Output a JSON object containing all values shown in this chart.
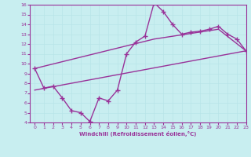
{
  "xlabel": "Windchill (Refroidissement éolien,°C)",
  "bg_color": "#c8eef0",
  "line_color": "#993399",
  "grid_color": "#b8e4e8",
  "xlim": [
    -0.5,
    23
  ],
  "ylim": [
    4,
    16
  ],
  "xticks": [
    0,
    1,
    2,
    3,
    4,
    5,
    6,
    7,
    8,
    9,
    10,
    11,
    12,
    13,
    14,
    15,
    16,
    17,
    18,
    19,
    20,
    21,
    22,
    23
  ],
  "yticks": [
    4,
    5,
    6,
    7,
    8,
    9,
    10,
    11,
    12,
    13,
    14,
    15,
    16
  ],
  "line1_x": [
    0,
    1,
    2,
    3,
    4,
    5,
    6,
    7,
    8,
    9,
    10,
    11,
    12,
    13,
    14,
    15,
    16,
    17,
    18,
    19,
    20,
    21,
    22,
    23
  ],
  "line1_y": [
    9.5,
    7.5,
    7.7,
    6.5,
    5.2,
    5.0,
    4.1,
    6.5,
    6.2,
    7.3,
    11.0,
    12.2,
    12.8,
    16.2,
    15.3,
    14.0,
    13.0,
    13.2,
    13.3,
    13.5,
    13.8,
    13.0,
    12.5,
    11.3
  ],
  "line2_x": [
    0,
    23
  ],
  "line2_y": [
    7.3,
    11.3
  ],
  "line3_x": [
    0,
    13,
    20,
    23
  ],
  "line3_y": [
    9.5,
    12.5,
    13.5,
    11.3
  ],
  "markersize": 2.5,
  "linewidth": 1.0
}
